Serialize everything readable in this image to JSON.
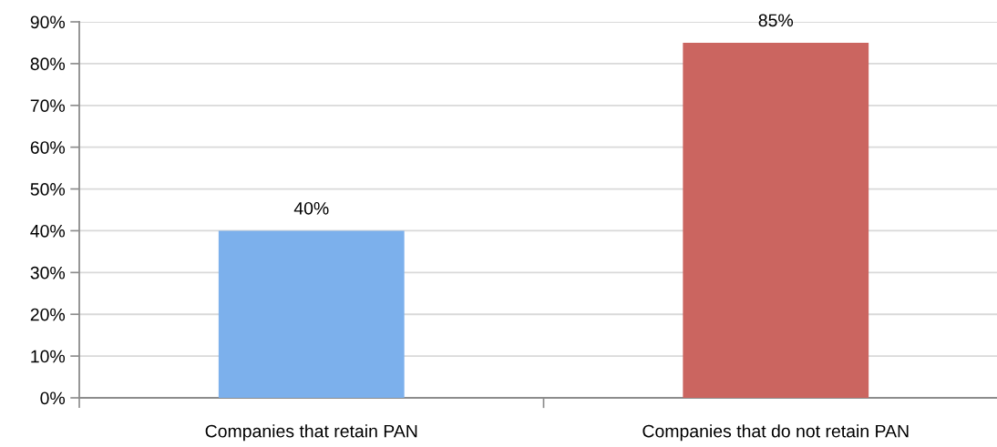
{
  "chart_data": {
    "type": "bar",
    "categories": [
      "Companies that retain PAN",
      "Companies that do not retain PAN"
    ],
    "values": [
      40,
      85
    ],
    "colors": [
      "#7cb0ec",
      "#cb6560"
    ],
    "value_labels": [
      "40%",
      "85%"
    ],
    "ylim": [
      0,
      90
    ],
    "yticks": [
      {
        "value": 0,
        "label": "0%"
      },
      {
        "value": 10,
        "label": "10%"
      },
      {
        "value": 20,
        "label": "20%"
      },
      {
        "value": 30,
        "label": "30%"
      },
      {
        "value": 40,
        "label": "40%"
      },
      {
        "value": 50,
        "label": "50%"
      },
      {
        "value": 60,
        "label": "60%"
      },
      {
        "value": 70,
        "label": "70%"
      },
      {
        "value": 80,
        "label": "80%"
      },
      {
        "value": 90,
        "label": "90%"
      }
    ],
    "grid": "y",
    "legend": false
  }
}
